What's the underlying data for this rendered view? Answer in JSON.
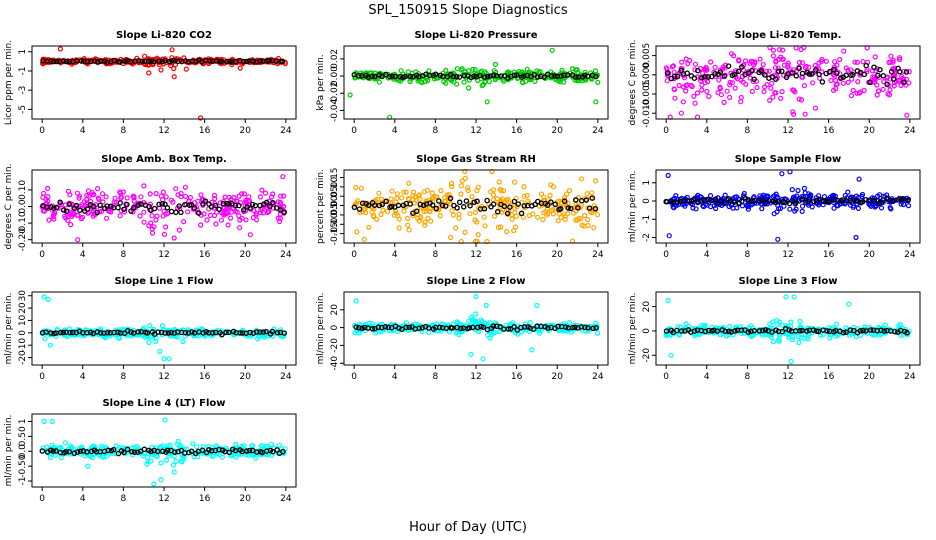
{
  "figure": {
    "title": "SPL_150915  Slope Diagnostics",
    "xlabel": "Hour of Day (UTC)"
  },
  "chart_data": [
    {
      "type": "scatter",
      "title": "Slope Li-820 CO2",
      "ylabel": "Licor ppm per min.",
      "color": "#ff0000",
      "ylim": [
        -6,
        1.6
      ],
      "yticks": [
        1,
        -1,
        -3,
        -5
      ],
      "xlim": [
        -1,
        25
      ],
      "xticks": [
        0,
        4,
        8,
        12,
        16,
        20,
        24
      ],
      "spread": 0.25,
      "outliers": [
        [
          1.8,
          1.3
        ],
        [
          10.5,
          -1.2
        ],
        [
          11.7,
          -0.9
        ],
        [
          12.8,
          1.2
        ],
        [
          13.0,
          -1.6
        ],
        [
          14.2,
          -0.8
        ],
        [
          15.6,
          -5.9
        ],
        [
          19.5,
          -0.7
        ]
      ]
    },
    {
      "type": "scatter",
      "title": "Slope Li-820 Pressure",
      "ylabel": "kPa per min.",
      "color": "#00cc00",
      "ylim": [
        -0.05,
        0.035
      ],
      "yticks": [
        0.02,
        0.0,
        -0.02,
        -0.04
      ],
      "xlim": [
        -1,
        25
      ],
      "xticks": [
        0,
        4,
        8,
        12,
        16,
        20,
        24
      ],
      "spread": 0.006,
      "outliers": [
        [
          3.5,
          -0.048
        ],
        [
          -0.4,
          -0.022
        ],
        [
          13.1,
          -0.03
        ],
        [
          19.5,
          0.03
        ],
        [
          23.8,
          -0.03
        ]
      ]
    },
    {
      "type": "scatter",
      "title": "Slope Li-820 Temp.",
      "ylabel": "degrees C per min.",
      "color": "#ff00ff",
      "ylim": [
        -0.0115,
        0.0075
      ],
      "yticks": [
        0.005,
        0.0,
        -0.005,
        -0.01
      ],
      "xlim": [
        -1,
        25
      ],
      "xticks": [
        0,
        4,
        8,
        12,
        16,
        20,
        24
      ],
      "spread": 0.005,
      "outliers": [
        [
          0.4,
          -0.011
        ],
        [
          1.5,
          -0.01
        ],
        [
          3.1,
          -0.011
        ],
        [
          12.8,
          0.007
        ],
        [
          19.8,
          0.007
        ],
        [
          23.7,
          -0.0105
        ]
      ]
    },
    {
      "type": "scatter",
      "title": "Slope Amb. Box Temp.",
      "ylabel": "degrees C per min.",
      "color": "#ff00ff",
      "ylim": [
        -0.22,
        0.22
      ],
      "yticks": [
        0.1,
        0.0,
        -0.1,
        -0.2
      ],
      "xlim": [
        -1,
        25
      ],
      "xticks": [
        0,
        4,
        8,
        12,
        16,
        20,
        24
      ],
      "spread": 0.09,
      "outliers": [
        [
          3.5,
          -0.2
        ],
        [
          13.0,
          -0.19
        ],
        [
          20.5,
          -0.17
        ],
        [
          23.7,
          0.18
        ]
      ]
    },
    {
      "type": "scatter",
      "title": "Slope Gas Stream RH",
      "ylabel": "percent per min.",
      "color": "#ffa500",
      "ylim": [
        -0.2,
        0.19
      ],
      "yticks": [
        0.15,
        0.1,
        0.05,
        0.0,
        -0.05,
        -0.1,
        -0.15
      ],
      "xlim": [
        -1,
        25
      ],
      "xticks": [
        0,
        4,
        8,
        12,
        16,
        20,
        24
      ],
      "spread": 0.1,
      "outliers": [
        [
          1.0,
          -0.18
        ],
        [
          9.5,
          -0.17
        ],
        [
          21.5,
          -0.19
        ]
      ]
    },
    {
      "type": "scatter",
      "title": "Slope Sample Flow",
      "ylabel": "ml/min per min.",
      "color": "#0000ff",
      "ylim": [
        -2.3,
        1.7
      ],
      "yticks": [
        1,
        0,
        -1,
        -2
      ],
      "xlim": [
        -1,
        25
      ],
      "xticks": [
        0,
        4,
        8,
        12,
        16,
        20,
        24
      ],
      "spread": 0.35,
      "outliers": [
        [
          0.3,
          -1.9
        ],
        [
          0.2,
          1.4
        ],
        [
          11.0,
          -2.1
        ],
        [
          11.4,
          1.5
        ],
        [
          12.2,
          1.6
        ],
        [
          18.7,
          -2.0
        ],
        [
          19.0,
          1.2
        ]
      ]
    },
    {
      "type": "scatter",
      "title": "Slope Line 1 Flow",
      "ylabel": "ml/min per min.",
      "color": "#00ffff",
      "ylim": [
        -26,
        33
      ],
      "yticks": [
        30,
        20,
        10,
        0,
        -10,
        -20
      ],
      "xlim": [
        -1,
        25
      ],
      "xticks": [
        0,
        4,
        8,
        12,
        16,
        20,
        24
      ],
      "spread": 3,
      "outliers": [
        [
          0.2,
          29
        ],
        [
          0.6,
          27
        ],
        [
          0.8,
          -10
        ],
        [
          12.0,
          -21
        ],
        [
          12.5,
          -21
        ],
        [
          11.6,
          -15
        ]
      ]
    },
    {
      "type": "scatter",
      "title": "Slope Line 2 Flow",
      "ylabel": "ml/min per min.",
      "color": "#00ffff",
      "ylim": [
        -42,
        40
      ],
      "yticks": [
        20,
        0,
        -20,
        -40
      ],
      "xlim": [
        -1,
        25
      ],
      "xticks": [
        0,
        4,
        8,
        12,
        16,
        20,
        24
      ],
      "spread": 5,
      "outliers": [
        [
          0.2,
          30
        ],
        [
          12.0,
          35
        ],
        [
          11.5,
          -30
        ],
        [
          12.7,
          -35
        ],
        [
          13.0,
          25
        ],
        [
          17.5,
          -25
        ],
        [
          18.0,
          25
        ]
      ]
    },
    {
      "type": "scatter",
      "title": "Slope Line 3 Flow",
      "ylabel": "ml/min per min.",
      "color": "#00ffff",
      "ylim": [
        -28,
        32
      ],
      "yticks": [
        20,
        0,
        -20
      ],
      "xlim": [
        -1,
        25
      ],
      "xticks": [
        0,
        4,
        8,
        12,
        16,
        20,
        24
      ],
      "spread": 4,
      "outliers": [
        [
          0.2,
          25
        ],
        [
          0.5,
          -20
        ],
        [
          11.8,
          28
        ],
        [
          12.6,
          28
        ],
        [
          12.3,
          -25
        ],
        [
          18.0,
          22
        ]
      ]
    },
    {
      "type": "scatter",
      "title": "Slope Line 4 (LT) Flow",
      "ylabel": "ml/min per min.",
      "color": "#00ffff",
      "ylim": [
        -1.2,
        1.25
      ],
      "yticks": [
        1.0,
        0.5,
        0.0,
        -0.5,
        -1.0
      ],
      "xlim": [
        -1,
        25
      ],
      "xticks": [
        0,
        4,
        8,
        12,
        16,
        20,
        24
      ],
      "spread": 0.18,
      "outliers": [
        [
          0.2,
          1.0
        ],
        [
          1.0,
          1.0
        ],
        [
          4.5,
          -0.5
        ],
        [
          11.0,
          -1.1
        ],
        [
          11.7,
          -0.95
        ],
        [
          12.1,
          1.05
        ],
        [
          13.0,
          -0.7
        ]
      ]
    }
  ]
}
